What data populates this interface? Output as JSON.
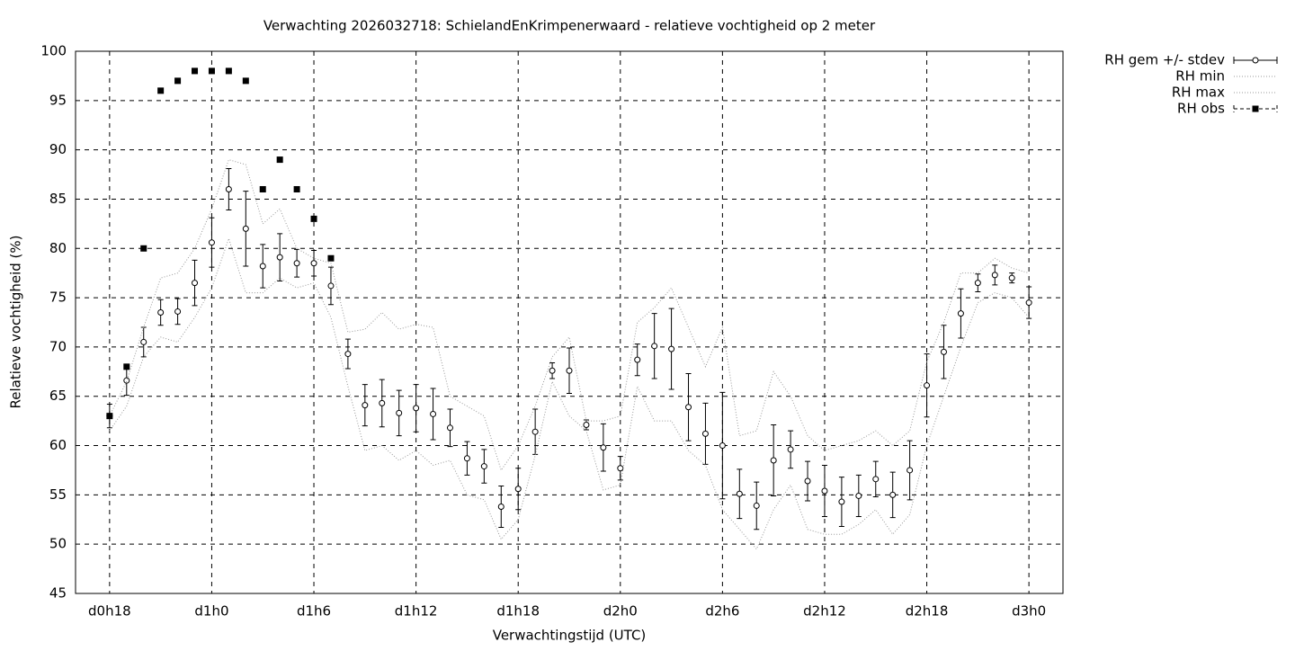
{
  "chart_data": {
    "type": "errorbar",
    "title": "Verwachting 2026032718: SchielandEnKrimpenerwaard - relatieve vochtigheid op 2 meter",
    "x_label": "Verwachtingstijd (UTC)",
    "y_label": "Relatieve vochtigheid (%)",
    "x": [
      18,
      19,
      20,
      21,
      22,
      23,
      24,
      25,
      26,
      27,
      28,
      29,
      30,
      31,
      32,
      33,
      34,
      35,
      36,
      37,
      38,
      39,
      40,
      41,
      42,
      43,
      44,
      45,
      46,
      47,
      48,
      49,
      50,
      51,
      52,
      53,
      54,
      55,
      56,
      57,
      58,
      59,
      60,
      61,
      62,
      63,
      64,
      65,
      66,
      67,
      68,
      69,
      70,
      71,
      72
    ],
    "series": [
      {
        "name": "RH gem +/- stdev",
        "color": "#000000",
        "style": "errorbar",
        "values": [
          63.0,
          66.6,
          70.5,
          73.5,
          73.6,
          76.5,
          80.6,
          86.0,
          82.0,
          78.2,
          79.1,
          78.5,
          78.5,
          76.2,
          69.3,
          64.1,
          64.3,
          63.3,
          63.8,
          63.2,
          61.8,
          58.7,
          57.9,
          53.8,
          55.6,
          61.4,
          67.6,
          67.6,
          62.1,
          59.8,
          57.7,
          68.7,
          70.1,
          69.8,
          63.9,
          61.2,
          60.0,
          55.1,
          53.9,
          58.5,
          59.6,
          56.4,
          55.4,
          54.3,
          54.9,
          56.6,
          55.0,
          57.5,
          66.1,
          69.5,
          73.4,
          76.5,
          77.3,
          77.0,
          74.5
        ],
        "errors": [
          1.2,
          1.5,
          1.5,
          1.3,
          1.3,
          2.3,
          2.5,
          2.1,
          3.8,
          2.2,
          2.4,
          1.4,
          1.3,
          1.9,
          1.5,
          2.1,
          2.4,
          2.3,
          2.4,
          2.6,
          1.9,
          1.7,
          1.7,
          2.1,
          2.1,
          2.3,
          0.8,
          2.3,
          0.5,
          2.4,
          1.2,
          1.6,
          3.3,
          4.1,
          3.4,
          3.1,
          5.4,
          2.5,
          2.4,
          3.6,
          1.9,
          2.0,
          2.6,
          2.5,
          2.1,
          1.8,
          2.3,
          3.0,
          3.2,
          2.7,
          2.5,
          0.9,
          1.0,
          0.5,
          1.6
        ]
      },
      {
        "name": "RH min",
        "color": "#999999",
        "style": "dotted",
        "values": [
          61.5,
          64,
          69,
          71,
          70.5,
          73,
          76,
          81,
          75.5,
          75.5,
          77,
          76,
          76.5,
          73,
          66,
          59.5,
          60,
          58.5,
          59.5,
          58,
          58.5,
          55,
          54.5,
          50.5,
          52.5,
          59,
          66.5,
          63,
          61.5,
          55.5,
          56,
          66,
          62.5,
          62.5,
          59.5,
          58,
          53.5,
          51.5,
          49.5,
          53.5,
          56,
          51.5,
          51,
          51,
          52,
          53.5,
          51,
          53,
          60,
          65,
          70,
          74.5,
          75.5,
          75,
          73
        ]
      },
      {
        "name": "RH max",
        "color": "#999999",
        "style": "dotted",
        "values": [
          63,
          66.5,
          72,
          77,
          77.5,
          80,
          84,
          89,
          88.5,
          82.5,
          84,
          80,
          79,
          78.5,
          71.5,
          71.8,
          73.5,
          71.8,
          72.3,
          72,
          65,
          64,
          63,
          57.5,
          60,
          64,
          69,
          71,
          62.5,
          62.5,
          63,
          72.5,
          74,
          76,
          72,
          68,
          72,
          61,
          61.5,
          67.5,
          65,
          61,
          59.5,
          60,
          60.5,
          61.5,
          60,
          61.5,
          68.5,
          72.5,
          77.5,
          77.5,
          79,
          78,
          77.5
        ]
      },
      {
        "name": "RH obs",
        "color": "#000000",
        "style": "points",
        "x": [
          18,
          19,
          20,
          21,
          22,
          23,
          24,
          25,
          26,
          27,
          28,
          29,
          30,
          31
        ],
        "values": [
          63,
          68,
          80,
          96,
          97,
          98,
          98,
          98,
          97,
          86,
          89,
          86,
          83,
          79
        ]
      }
    ],
    "xlim": [
      16,
      74
    ],
    "xticks": [
      {
        "value": 18,
        "label": "d0h18"
      },
      {
        "value": 24,
        "label": "d1h0"
      },
      {
        "value": 30,
        "label": "d1h6"
      },
      {
        "value": 36,
        "label": "d1h12"
      },
      {
        "value": 42,
        "label": "d1h18"
      },
      {
        "value": 48,
        "label": "d2h0"
      },
      {
        "value": 54,
        "label": "d2h6"
      },
      {
        "value": 60,
        "label": "d2h12"
      },
      {
        "value": 66,
        "label": "d2h18"
      },
      {
        "value": 72,
        "label": "d3h0"
      }
    ],
    "ylim": [
      45,
      100
    ],
    "yticks": [
      45,
      50,
      55,
      60,
      65,
      70,
      75,
      80,
      85,
      90,
      95,
      100
    ],
    "grid": true,
    "legend": "outside-right"
  }
}
